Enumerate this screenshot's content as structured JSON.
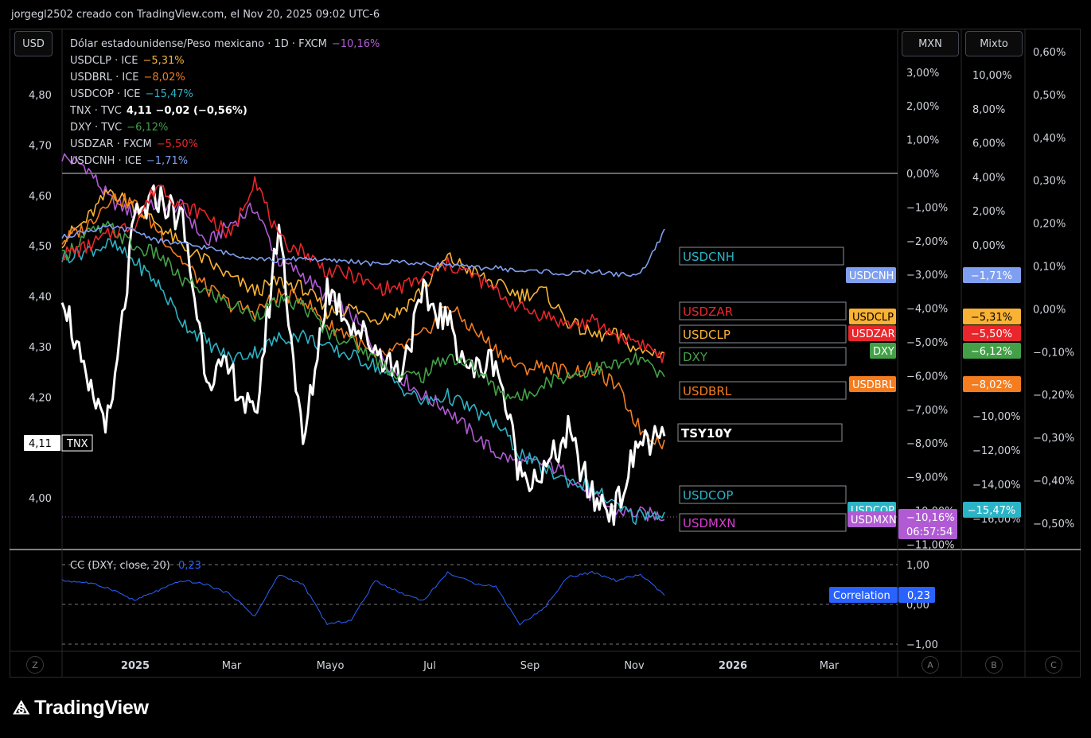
{
  "header": {
    "caption": "jorgegl2502 creado con TradingView.com, el Nov 20, 2025 09:02 UTC-6"
  },
  "buttons": {
    "usd": "USD",
    "mxn": "MXN",
    "mixto": "Mixto"
  },
  "legend": [
    {
      "name": "Dólar estadounidense/Peso mexicano · 1D · FXCM",
      "value": "−10,16%",
      "color": "#b05bd4"
    },
    {
      "name": "USDCLP · ICE",
      "value": "−5,31%",
      "color": "#f9b234"
    },
    {
      "name": "USDBRL · ICE",
      "value": "−8,02%",
      "color": "#f57c1f"
    },
    {
      "name": "USDCOP · ICE",
      "value": "−15,47%",
      "color": "#2bb3c6"
    },
    {
      "name": "TNX · TVC",
      "value": "4,11 −0,02 (−0,56%)",
      "color": "#ffffff"
    },
    {
      "name": "DXY · TVC",
      "value": "−6,12%",
      "color": "#43a047"
    },
    {
      "name": "USDZAR · FXCM",
      "value": "−5,50%",
      "color": "#e8262b"
    },
    {
      "name": "USDCNH · ICE",
      "value": "−1,71%",
      "color": "#7f9ff0"
    }
  ],
  "left_axis": {
    "ticks": [
      "4,80",
      "4,70",
      "4,60",
      "4,50",
      "4,40",
      "4,30",
      "4,20",
      "4,00"
    ],
    "current": "4,11",
    "current_tag": "TNX"
  },
  "mxn_axis": {
    "ticks": [
      "3,00%",
      "2,00%",
      "1,00%",
      "0,00%",
      "−1,00%",
      "−2,00%",
      "−3,00%",
      "−4,00%",
      "−5,00%",
      "−6,00%",
      "−7,00%",
      "−8,00%",
      "−9,00%",
      "−10,00%",
      "−11,00%"
    ]
  },
  "mixto_axis": {
    "ticks": [
      "10,00%",
      "8,00%",
      "6,00%",
      "4,00%",
      "2,00%",
      "0,00%",
      "−10,00%",
      "−12,00%",
      "−14,00%",
      "−16,00%"
    ]
  },
  "right_axis": {
    "ticks": [
      "0,60%",
      "0,50%",
      "0,40%",
      "0,30%",
      "0,20%",
      "0,10%",
      "0,00%",
      "−0,10%",
      "−0,20%",
      "−0,30%",
      "−0,40%",
      "−0,50%"
    ]
  },
  "labels_on_chart": [
    {
      "text": "USDCNH",
      "color": "#2bb3c6"
    },
    {
      "text": "USDZAR",
      "color": "#e8262b"
    },
    {
      "text": "USDCLP",
      "color": "#f9b234"
    },
    {
      "text": "DXY",
      "color": "#43a047"
    },
    {
      "text": "USDBRL",
      "color": "#f57c1f"
    },
    {
      "text": "TSY10Y",
      "color": "#ffffff"
    },
    {
      "text": "USDCOP",
      "color": "#2bb3c6"
    },
    {
      "text": "USDMXN",
      "color": "#d63fd0"
    }
  ],
  "mxn_axis_tags": [
    {
      "text": "USDCNH",
      "bg": "#7f9ff0",
      "fg": "#ffffff"
    },
    {
      "text": "USDCLP",
      "bg": "#f9b234",
      "fg": "#000000"
    },
    {
      "text": "USDZAR",
      "bg": "#e8262b",
      "fg": "#ffffff"
    },
    {
      "text": "DXY",
      "bg": "#43a047",
      "fg": "#ffffff"
    },
    {
      "text": "USDBRL",
      "bg": "#f57c1f",
      "fg": "#ffffff"
    },
    {
      "text": "USDCOP",
      "bg": "#2bb3c6",
      "fg": "#ffffff"
    },
    {
      "text": "USDMXN",
      "bg": "#b05bd4",
      "fg": "#ffffff"
    }
  ],
  "mxn_price_tag": {
    "value": "−10,16%",
    "timer": "06:57:54"
  },
  "mixto_tags": [
    {
      "text": "−1,71%",
      "bg": "#7f9ff0"
    },
    {
      "text": "−5,31%",
      "bg": "#f9b234"
    },
    {
      "text": "−5,50%",
      "bg": "#e8262b"
    },
    {
      "text": "−6,12%",
      "bg": "#43a047"
    },
    {
      "text": "−8,02%",
      "bg": "#f57c1f"
    },
    {
      "text": "−15,47%",
      "bg": "#2bb3c6"
    }
  ],
  "correlation_pane": {
    "legend_name": "CC (DXY, close, 20)",
    "legend_value": "0,23",
    "ticks": [
      "1,00",
      "0,00",
      "−1,00"
    ],
    "tag_label": "Correlation",
    "tag_value": "0,23",
    "color": "#2962ff"
  },
  "time_axis": {
    "labels": [
      "2025",
      "Mar",
      "Mayo",
      "Jul",
      "Sep",
      "Nov",
      "2026",
      "Mar"
    ]
  },
  "bottom_buttons": {
    "left": "Z",
    "a": "A",
    "b": "B",
    "c": "C"
  },
  "logo": "TradingView",
  "chart_data": {
    "type": "line",
    "x_start": "2024-11",
    "x_end": "2025-11-20",
    "series": [
      {
        "name": "USDMXN",
        "unit": "%",
        "values": [
          0.5,
          0.2,
          -0.8,
          -1.2,
          -0.9,
          -1.0,
          -2.1,
          -1.5,
          -1.0,
          -2.6,
          -3.0,
          -3.7,
          -4.2,
          -5.2,
          -6.0,
          -6.6,
          -7.0,
          -7.7,
          -8.3,
          -8.6,
          -8.6,
          -8.9,
          -9.6,
          -10.0,
          -10.1,
          -10.16
        ]
      },
      {
        "name": "USDCLP",
        "unit": "%",
        "values": [
          -2.0,
          -1.4,
          -0.5,
          -1.0,
          -1.5,
          -2.2,
          -2.6,
          -3.1,
          -3.5,
          -3.2,
          -3.4,
          -4.1,
          -4.0,
          -4.3,
          -4.1,
          -3.4,
          -2.5,
          -2.9,
          -3.3,
          -3.6,
          -3.5,
          -4.4,
          -4.8,
          -4.8,
          -5.3,
          -5.31
        ]
      },
      {
        "name": "USDBRL",
        "unit": "%",
        "values": [
          -2.0,
          -1.6,
          -0.7,
          -0.9,
          -1.7,
          -2.6,
          -3.4,
          -3.9,
          -4.1,
          -3.6,
          -3.7,
          -4.5,
          -4.8,
          -5.5,
          -5.2,
          -4.8,
          -3.9,
          -4.6,
          -5.2,
          -5.8,
          -5.7,
          -5.9,
          -5.8,
          -6.3,
          -7.6,
          -8.02
        ]
      },
      {
        "name": "USDCOP",
        "unit": "%",
        "values": [
          -2.5,
          -2.3,
          -2.1,
          -2.6,
          -3.3,
          -4.4,
          -5.0,
          -5.5,
          -5.3,
          -4.9,
          -4.8,
          -5.2,
          -5.4,
          -5.7,
          -6.3,
          -6.8,
          -6.6,
          -7.0,
          -7.4,
          -8.3,
          -8.8,
          -9.1,
          -9.3,
          -9.9,
          -10.3,
          -15.47
        ]
      },
      {
        "name": "TNX",
        "unit": "yield",
        "values": [
          4.42,
          4.22,
          4.15,
          4.55,
          4.6,
          4.55,
          4.25,
          4.25,
          4.15,
          4.55,
          4.1,
          4.42,
          4.35,
          4.3,
          4.25,
          4.4,
          4.35,
          4.25,
          4.28,
          4.05,
          4.05,
          4.13,
          4.0,
          3.98,
          4.12,
          4.11
        ]
      },
      {
        "name": "DXY",
        "unit": "%",
        "values": [
          -2.5,
          -1.8,
          -1.6,
          -2.2,
          -2.4,
          -3.2,
          -3.5,
          -3.9,
          -4.2,
          -3.8,
          -3.9,
          -4.7,
          -5.0,
          -5.5,
          -6.0,
          -6.0,
          -5.4,
          -5.7,
          -6.4,
          -6.7,
          -6.2,
          -6.0,
          -5.8,
          -5.7,
          -5.5,
          -6.12
        ]
      },
      {
        "name": "USDZAR",
        "unit": "%",
        "values": [
          -2.4,
          -2.2,
          -1.8,
          -1.5,
          -0.3,
          -1.0,
          -1.2,
          -1.9,
          -0.1,
          -2.0,
          -2.3,
          -2.9,
          -3.0,
          -3.4,
          -3.4,
          -3.1,
          -2.7,
          -3.0,
          -3.5,
          -4.0,
          -4.2,
          -4.5,
          -4.4,
          -4.8,
          -5.0,
          -5.5
        ]
      },
      {
        "name": "USDCNH",
        "unit": "%",
        "values": [
          -1.9,
          -1.7,
          -1.6,
          -1.7,
          -2.0,
          -2.1,
          -2.2,
          -2.4,
          -2.5,
          -2.6,
          -2.5,
          -2.6,
          -2.6,
          -2.7,
          -2.6,
          -2.7,
          -2.7,
          -2.8,
          -2.8,
          -2.9,
          -2.9,
          -3.0,
          -2.9,
          -3.0,
          -3.0,
          -1.71
        ]
      },
      {
        "name": "CC (DXY, close, 20)",
        "unit": "corr",
        "values": [
          0.6,
          0.55,
          0.4,
          0.1,
          0.35,
          0.6,
          0.5,
          0.25,
          -0.3,
          0.75,
          0.5,
          -0.5,
          -0.4,
          0.6,
          0.3,
          0.1,
          0.8,
          0.55,
          0.45,
          -0.5,
          -0.1,
          0.7,
          0.8,
          0.6,
          0.75,
          0.23
        ]
      }
    ],
    "ylim_left": [
      3.95,
      4.85
    ],
    "ylim_mxn": [
      -11,
      3
    ],
    "grid": false,
    "legend": "top-left"
  }
}
